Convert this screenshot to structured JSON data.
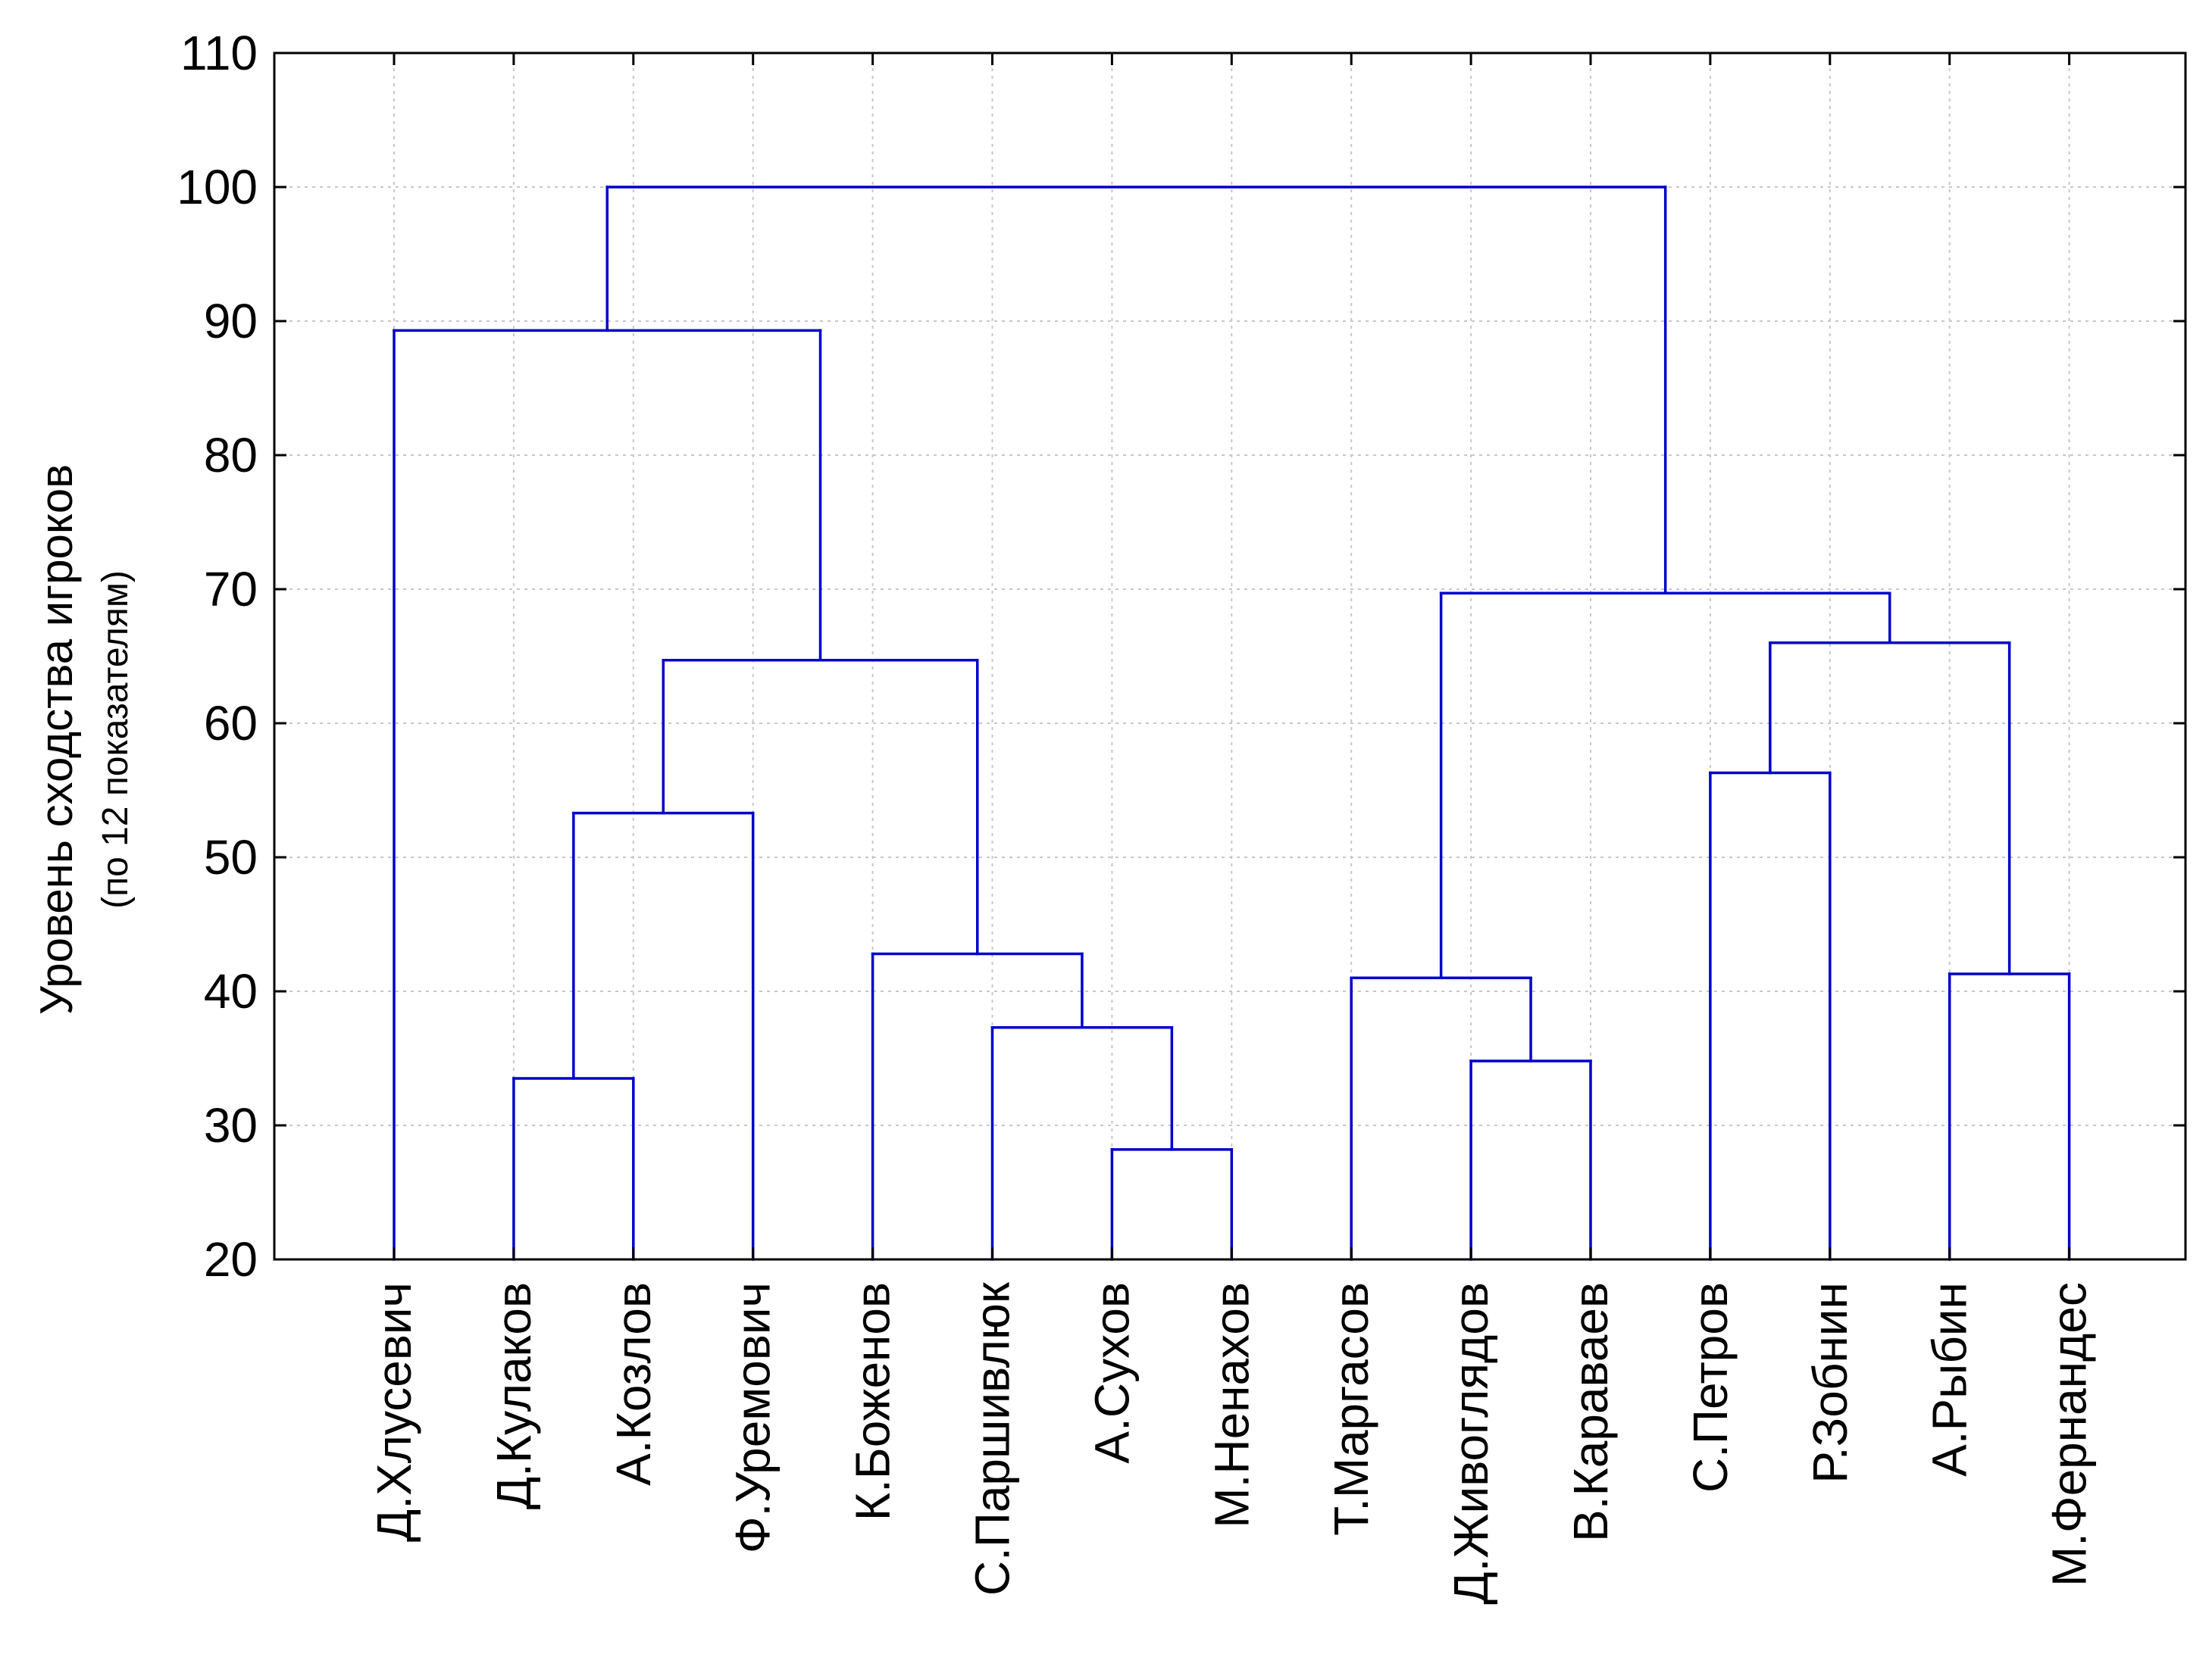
{
  "chart_data": {
    "type": "dendrogram",
    "ylabel": "Уровень сходства игроков",
    "ylabel_sub": "(по 12 показателям)",
    "ylim": [
      20,
      110
    ],
    "yticks": [
      20,
      30,
      40,
      50,
      60,
      70,
      80,
      90,
      100,
      110
    ],
    "grid": true,
    "line_color": "#0000cc",
    "leaves": [
      "Д.Хлусевич",
      "Д.Кулаков",
      "А.Козлов",
      "Ф.Уремович",
      "К.Боженов",
      "С.Паршивлюк",
      "А.Сухов",
      "М.Ненахов",
      "Т.Маргасов",
      "Д.Живоглядов",
      "В.Караваев",
      "С.Петров",
      "Р.Зобнин",
      "А.Рыбин",
      "М.Фернандес"
    ],
    "merges": [
      {
        "left": 6,
        "right": 7,
        "height": 28.2
      },
      {
        "left": 1,
        "right": 2,
        "height": 33.5
      },
      {
        "left": 9,
        "right": 10,
        "height": 34.8
      },
      {
        "left": 5,
        "right": 15,
        "height": 37.3
      },
      {
        "left": 8,
        "right": 17,
        "height": 41.0
      },
      {
        "left": 13,
        "right": 14,
        "height": 41.3
      },
      {
        "left": 4,
        "right": 18,
        "height": 42.8
      },
      {
        "left": 16,
        "right": 3,
        "height": 53.3
      },
      {
        "left": 11,
        "right": 12,
        "height": 56.3
      },
      {
        "left": 22,
        "right": 21,
        "height": 64.7
      },
      {
        "left": 23,
        "right": 20,
        "height": 66.0
      },
      {
        "left": 19,
        "right": 25,
        "height": 69.7
      },
      {
        "left": 0,
        "right": 24,
        "height": 89.3
      },
      {
        "left": 27,
        "right": 26,
        "height": 100.0
      }
    ]
  }
}
